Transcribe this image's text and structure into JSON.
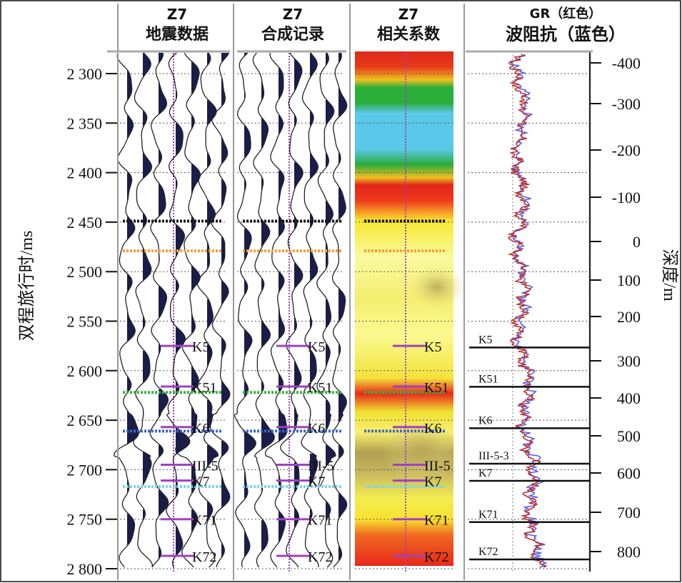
{
  "y_axis_title": "双程旅行时/ms",
  "right_axis_title": "深度/m",
  "chart_data": {
    "type": "well-tie",
    "time_axis": {
      "label": "双程旅行时/ms",
      "ticks": [
        2300,
        2350,
        2400,
        2450,
        2500,
        2550,
        2600,
        2650,
        2700,
        2750,
        2800
      ],
      "tick_labels": [
        "2 300",
        "2 350",
        "2 400",
        "2 450",
        "2 500",
        "2 550",
        "2 600",
        "2 650",
        "2 700",
        "2 750",
        "2 800"
      ],
      "range": [
        2278,
        2800
      ]
    },
    "depth_axis": {
      "label": "深度/m",
      "ticks": [
        -400,
        -300,
        -200,
        -100,
        0,
        100,
        200,
        300,
        400,
        500,
        600,
        700,
        800
      ],
      "tick_labels": [
        "-400",
        "-300",
        "-200",
        "-100",
        "0",
        "100",
        "200",
        "300",
        "400",
        "500",
        "600",
        "700",
        "800"
      ]
    },
    "panels": [
      {
        "id": "seismic",
        "title_line1": "Z7",
        "title_line2": "地震数据"
      },
      {
        "id": "synthetic",
        "title_line1": "Z7",
        "title_line2": "合成记录"
      },
      {
        "id": "correlation",
        "title_line1": "Z7",
        "title_line2": "相关系数"
      },
      {
        "id": "log",
        "title_line1": "GR（红色）",
        "title_line2": "波阻抗（蓝色）"
      }
    ],
    "horizons": [
      {
        "name": "K5",
        "time": 2575,
        "depth": 270
      },
      {
        "name": "K51",
        "time": 2616,
        "depth": 370
      },
      {
        "name": "K6",
        "time": 2657,
        "depth": 480
      },
      {
        "name": "III-5",
        "time": 2695,
        "depth": 575
      },
      {
        "name": "K7",
        "time": 2711,
        "depth": 620
      },
      {
        "name": "K71",
        "time": 2750,
        "depth": 725
      },
      {
        "name": "K72",
        "time": 2787,
        "depth": 820
      }
    ],
    "horizon_label_III5_log": "III-5-3",
    "colored_markers": [
      {
        "color": "#111111",
        "time": 2449
      },
      {
        "color": "#f2a03c",
        "time": 2479
      },
      {
        "color": "#3cb043",
        "time": 2622
      },
      {
        "color": "#3a66c8",
        "time": 2661
      },
      {
        "color": "#7fd4e6",
        "time": 2717
      }
    ],
    "colors": {
      "gr": "#c0302c",
      "impedance": "#5560d8",
      "well_track": "#a040c0",
      "wavelet_fill": "#1a1d4a"
    }
  }
}
